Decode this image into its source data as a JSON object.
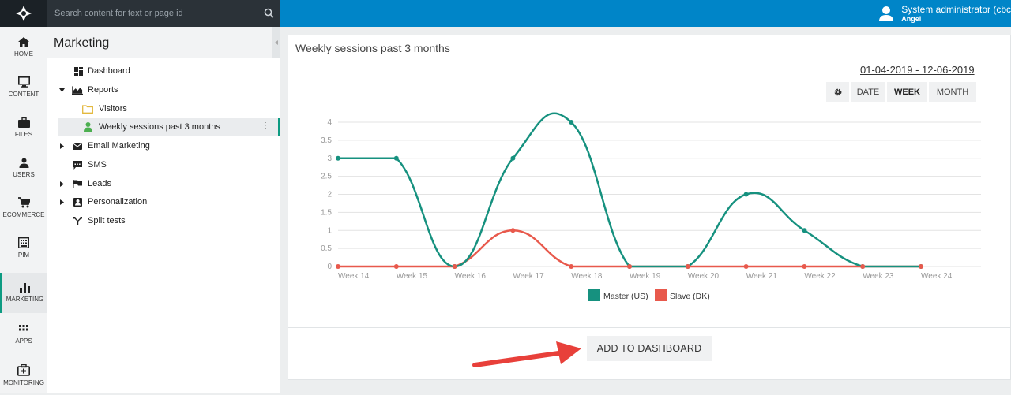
{
  "search": {
    "placeholder": "Search content for text or page id"
  },
  "user": {
    "name": "System administrator (cbc",
    "sub": "Angel"
  },
  "nav": [
    {
      "label": "HOME",
      "icon": "home-icon"
    },
    {
      "label": "CONTENT",
      "icon": "monitor-icon"
    },
    {
      "label": "FILES",
      "icon": "briefcase-icon"
    },
    {
      "label": "USERS",
      "icon": "user-icon"
    },
    {
      "label": "ECOMMERCE",
      "icon": "cart-icon"
    },
    {
      "label": "PIM",
      "icon": "building-icon"
    },
    {
      "label": "MARKETING",
      "icon": "bar-chart-icon",
      "active": true
    },
    {
      "label": "APPS",
      "icon": "grid-icon"
    },
    {
      "label": "MONITORING",
      "icon": "medkit-icon"
    }
  ],
  "tree": {
    "title": "Marketing",
    "items": [
      {
        "label": "Dashboard",
        "icon": "dashboard-icon"
      },
      {
        "label": "Reports",
        "icon": "area-chart-icon"
      },
      {
        "label": "Visitors",
        "icon": "folder-icon"
      },
      {
        "label": "Weekly sessions past 3 months",
        "icon": "user-icon"
      },
      {
        "label": "Email Marketing",
        "icon": "envelope-icon"
      },
      {
        "label": "SMS",
        "icon": "comment-icon"
      },
      {
        "label": "Leads",
        "icon": "flag-icon"
      },
      {
        "label": "Personalization",
        "icon": "contact-card-icon"
      },
      {
        "label": "Split tests",
        "icon": "split-icon"
      }
    ]
  },
  "panel": {
    "title": "Weekly sessions past 3 months",
    "date_range": "01-04-2019 - 12-06-2019",
    "buttons": {
      "date": "DATE",
      "week": "WEEK",
      "month": "MONTH"
    },
    "add_button": "ADD TO DASHBOARD"
  },
  "colors": {
    "master": "#16917f",
    "slave": "#e8594c",
    "accent": "#0d9b82",
    "topbar": "#0085c8"
  },
  "chart_data": {
    "type": "line",
    "categories": [
      "Week 14",
      "Week 15",
      "Week 16",
      "Week 17",
      "Week 18",
      "Week 19",
      "Week 20",
      "Week 21",
      "Week 22",
      "Week 23",
      "Week 24"
    ],
    "series": [
      {
        "name": "Master (US)",
        "values": [
          3,
          3,
          0,
          3,
          4,
          0,
          0,
          2,
          1,
          0,
          0
        ],
        "color": "#16917f"
      },
      {
        "name": "Slave (DK)",
        "values": [
          0,
          0,
          0,
          1,
          0,
          0,
          0,
          0,
          0,
          0,
          0
        ],
        "color": "#e8594c"
      }
    ],
    "yticks": [
      "0",
      "0.5",
      "1",
      "1.5",
      "2",
      "2.5",
      "3",
      "3.5",
      "4"
    ],
    "ylim": [
      0,
      4
    ],
    "grid": true,
    "legend_position": "bottom"
  }
}
